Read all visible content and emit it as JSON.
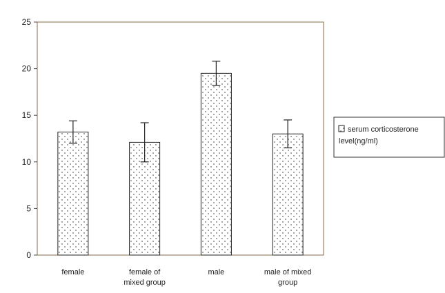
{
  "chart_data": {
    "type": "bar",
    "categories": [
      [
        "female"
      ],
      [
        "female of",
        "mixed group"
      ],
      [
        "male"
      ],
      [
        "male of mixed",
        "group"
      ]
    ],
    "series": [
      {
        "name": [
          "serum corticosterone",
          "level(ng/ml)"
        ],
        "values": [
          13.2,
          12.1,
          19.5,
          13.0
        ],
        "errors": [
          1.2,
          2.1,
          1.3,
          1.5
        ]
      }
    ],
    "ylim": [
      0,
      25
    ],
    "yticks": [
      0,
      5,
      10,
      15,
      20,
      25
    ],
    "grid": false,
    "legend_position": "right",
    "colors": {
      "bar_fill": "#ffffff",
      "bar_stroke": "#222222",
      "dot": "#333333",
      "axis": "#444444",
      "frame": "#8a6a4a"
    }
  }
}
